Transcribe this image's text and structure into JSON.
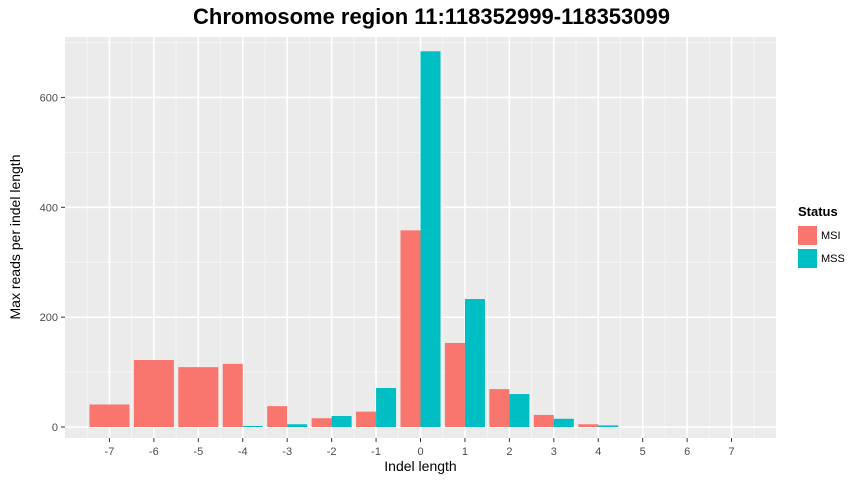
{
  "chart_data": {
    "type": "bar",
    "title": "Chromosome region 11:118352999-118353099",
    "xlabel": "Indel length",
    "ylabel": "Max reads per indel length",
    "categories": [
      "-7",
      "-6",
      "-5",
      "-4",
      "-3",
      "-2",
      "-1",
      "0",
      "1",
      "2",
      "3",
      "4",
      "5",
      "6",
      "7"
    ],
    "xlim": [
      -8,
      8
    ],
    "ylim": [
      -20,
      710
    ],
    "yticks": [
      0,
      200,
      400,
      600
    ],
    "grid": true,
    "legend": {
      "title": "Status",
      "placement": "right"
    },
    "series": [
      {
        "name": "MSI",
        "color": "#F8766D",
        "values": [
          41,
          122,
          109,
          115,
          38,
          16,
          28,
          358,
          153,
          69,
          22,
          5,
          0,
          0,
          0
        ]
      },
      {
        "name": "MSS",
        "color": "#00BFC4",
        "values": [
          null,
          null,
          null,
          2,
          5,
          20,
          71,
          684,
          233,
          60,
          15,
          3,
          0,
          0,
          0
        ]
      }
    ]
  }
}
